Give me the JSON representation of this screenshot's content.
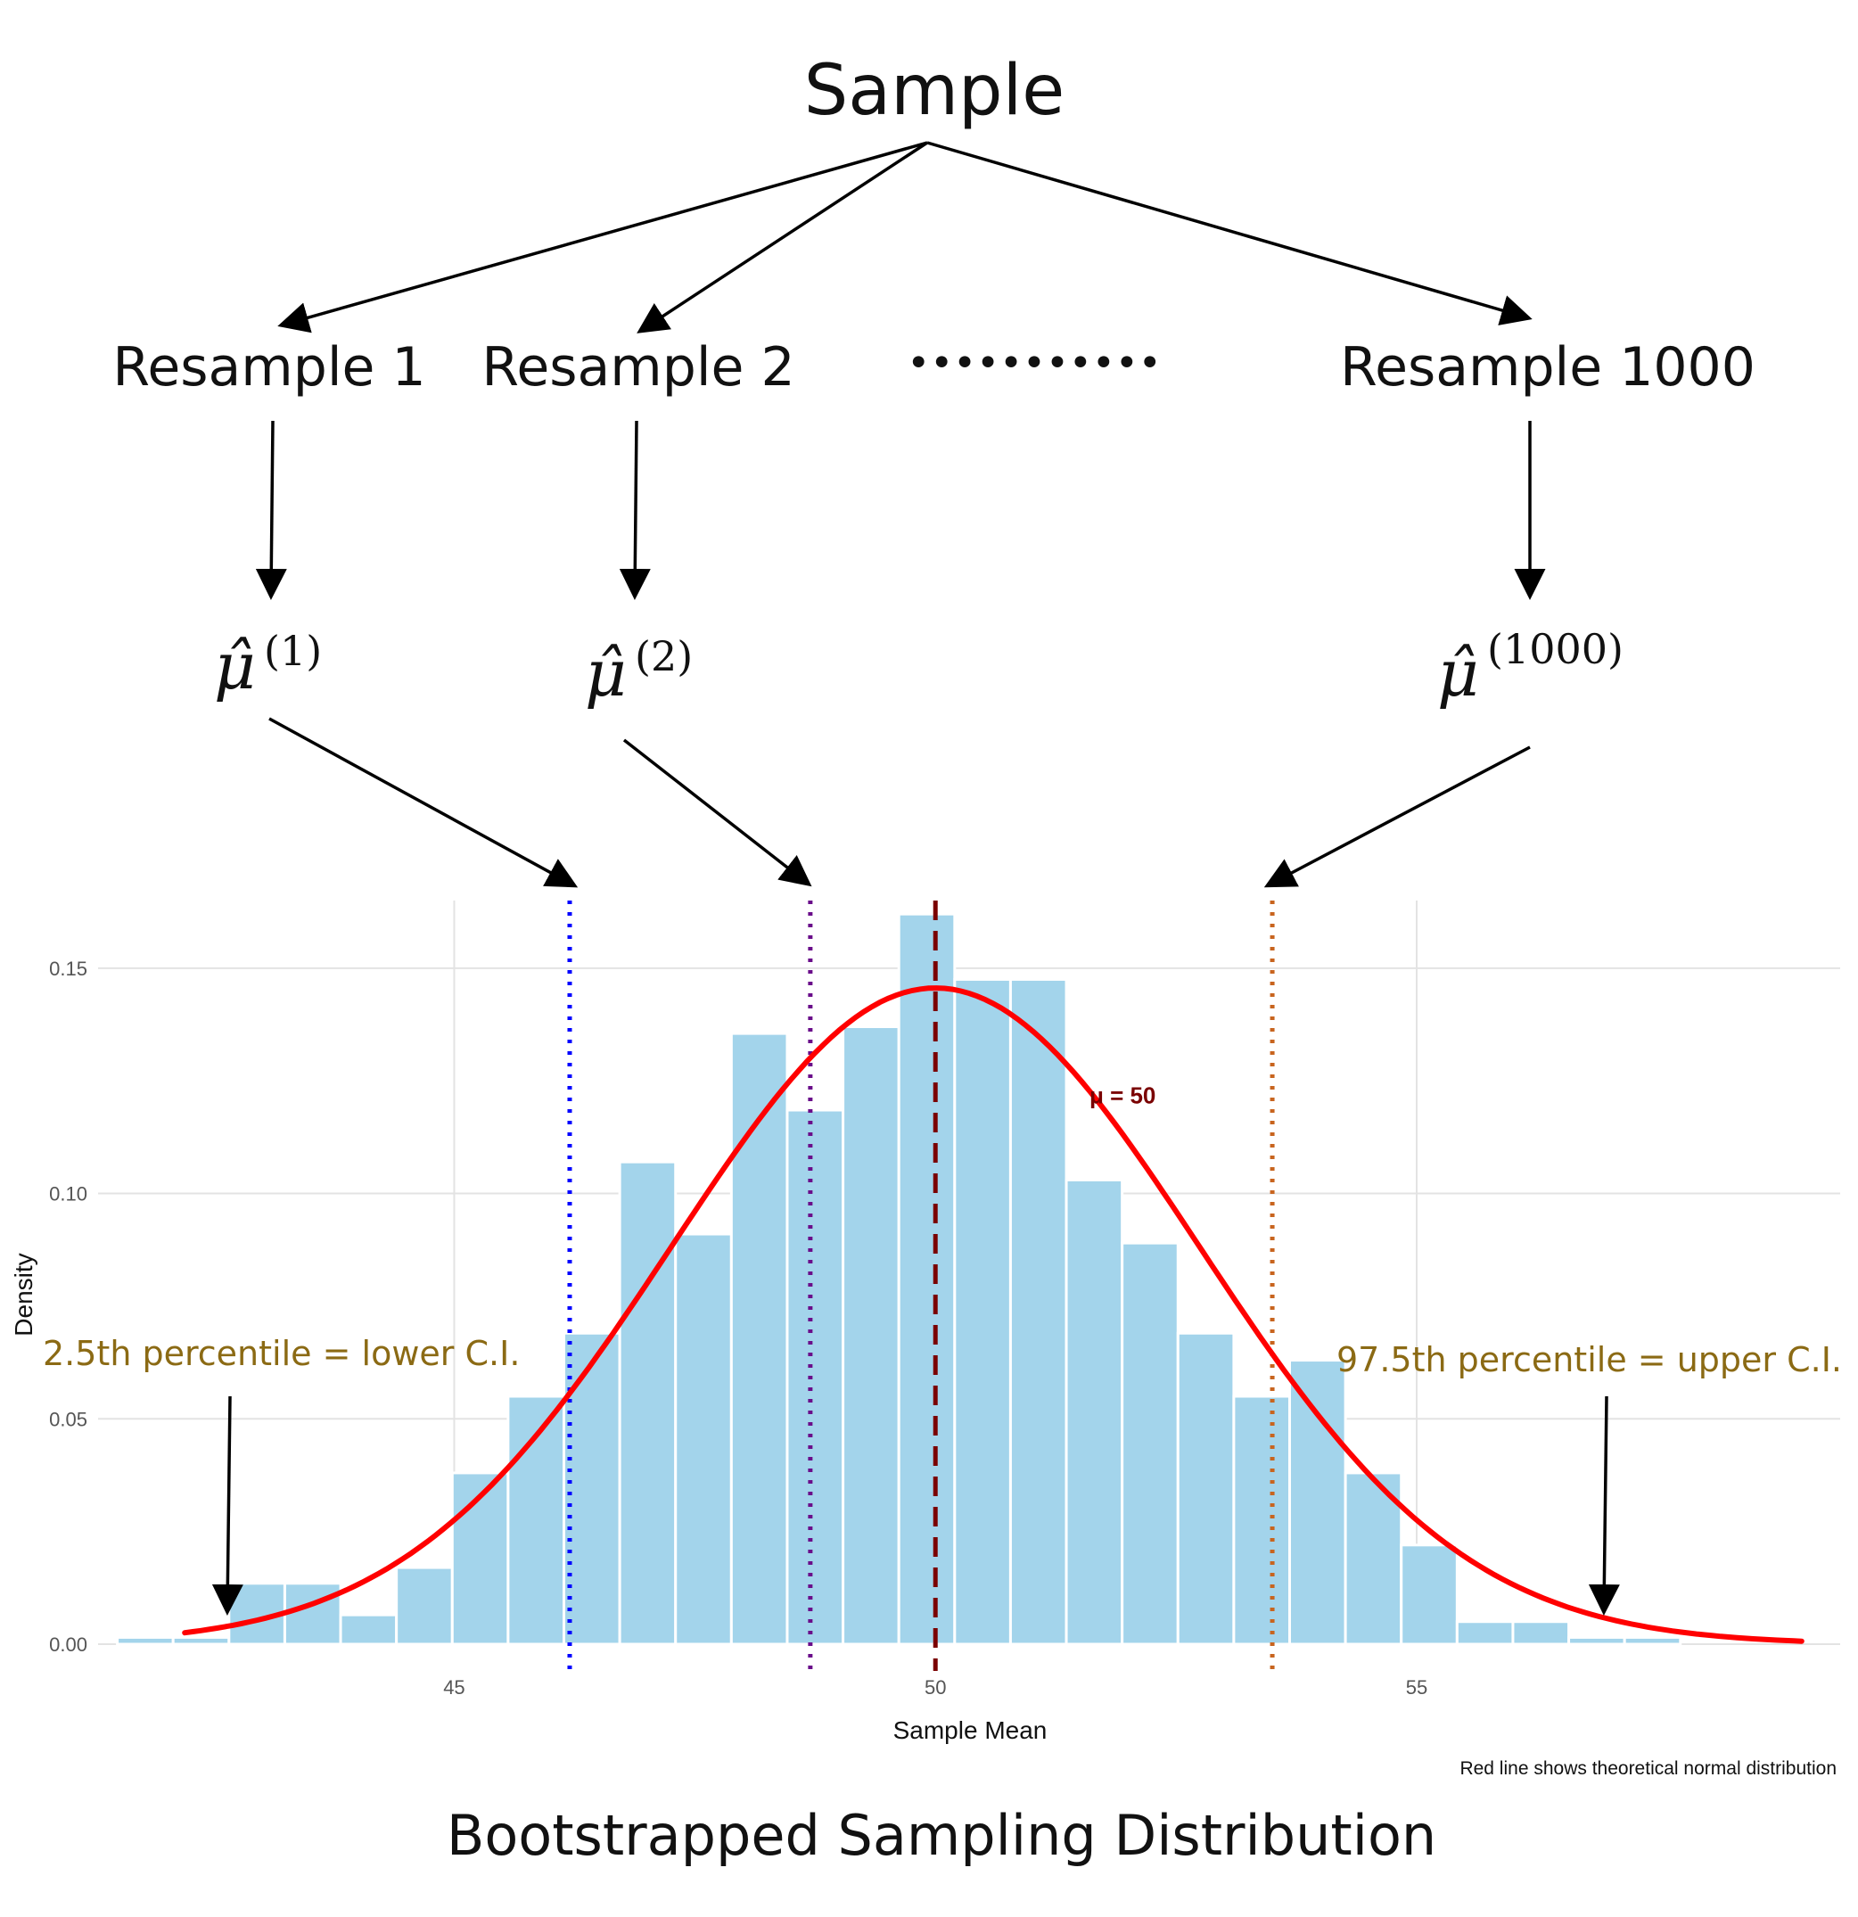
{
  "diagram": {
    "sample_label": "Sample",
    "resamples": [
      "Resample 1",
      "Resample 2",
      "Resample 1000"
    ],
    "ellipsis": "•••••••••••",
    "estimates": [
      {
        "symbol": "μ̂",
        "superscript": "(1)"
      },
      {
        "symbol": "μ̂",
        "superscript": "(2)"
      },
      {
        "symbol": "μ̂",
        "superscript": "(1000)"
      }
    ],
    "lower_ci_label": "2.5th percentile = lower C.I.",
    "upper_ci_label": "97.5th percentile = upper C.I.",
    "bottom_title": "Bootstrapped Sampling Distribution"
  },
  "chart_data": {
    "type": "bar",
    "title": "",
    "xlabel": "Sample Mean",
    "ylabel": "Density",
    "caption": "Red line shows theoretical normal distribution",
    "xlim": [
      41.3,
      59.4
    ],
    "ylim": [
      0,
      0.165
    ],
    "x_ticks": [
      45,
      50,
      55
    ],
    "y_ticks": [
      0.0,
      0.05,
      0.1,
      0.15
    ],
    "y_tick_labels": [
      "0.00",
      "0.05",
      "0.10",
      "0.15"
    ],
    "grid": true,
    "bin_width": 0.58,
    "bin_starts": [
      41.5,
      42.08,
      42.66,
      43.24,
      43.82,
      44.4,
      44.98,
      45.56,
      46.14,
      46.72,
      47.3,
      47.88,
      48.46,
      49.04,
      49.62,
      50.2,
      50.78,
      51.36,
      51.94,
      52.52,
      53.1,
      53.68,
      54.26,
      54.84,
      55.42,
      56.0,
      56.58,
      57.16,
      57.74
    ],
    "densities": [
      0.0015,
      0.0015,
      0.0135,
      0.0135,
      0.0065,
      0.017,
      0.038,
      0.055,
      0.069,
      0.107,
      0.091,
      0.1355,
      0.1185,
      0.137,
      0.162,
      0.1475,
      0.1475,
      0.103,
      0.089,
      0.069,
      0.055,
      0.063,
      0.038,
      0.022,
      0.005,
      0.005,
      0.0015,
      0.0015,
      0.0
    ],
    "bar_color": "#a3d4eb",
    "normal_curve": {
      "mean": 50,
      "sd": 2.74,
      "x_range": [
        42.2,
        59.0
      ],
      "color": "#ff0000"
    },
    "reference_lines": [
      {
        "x": 46.2,
        "color": "#0000ff",
        "style": "dotted"
      },
      {
        "x": 48.7,
        "color": "#6a0d8a",
        "style": "dotted"
      },
      {
        "x": 50.0,
        "color": "#7a0000",
        "style": "dashed"
      },
      {
        "x": 53.5,
        "color": "#c8641e",
        "style": "dotted"
      }
    ],
    "annotation": {
      "text": "μ = 50",
      "x": 51.6,
      "y": 0.12,
      "color": "#7a0000"
    }
  }
}
